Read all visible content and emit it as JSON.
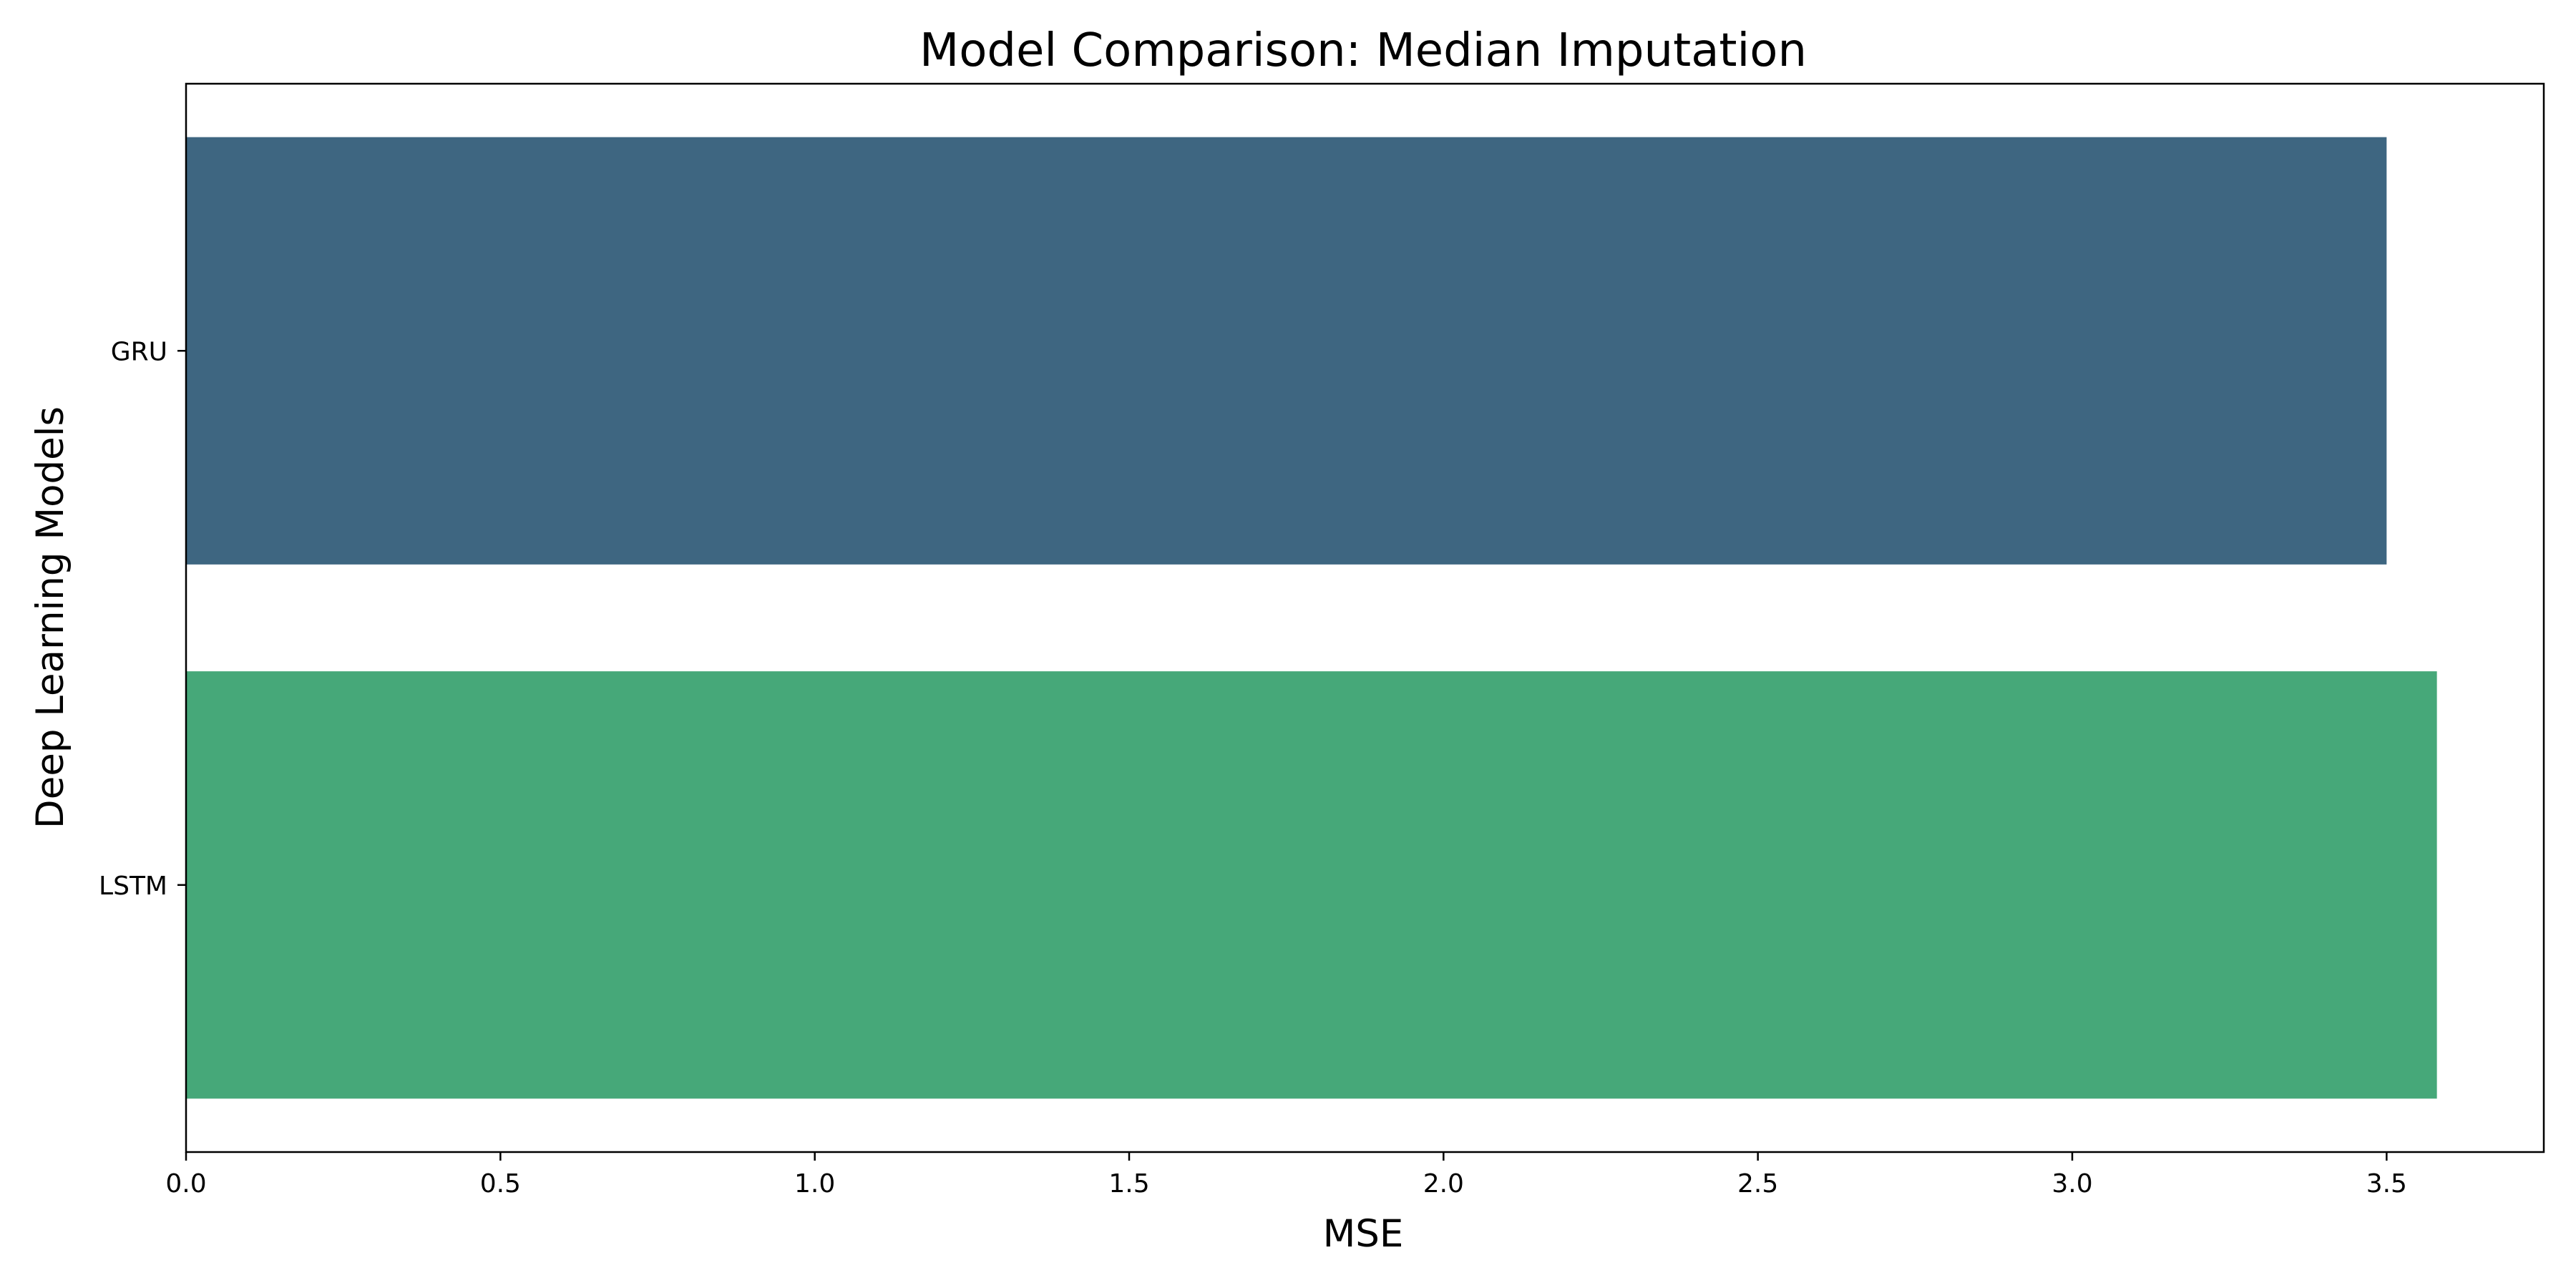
{
  "chart_data": {
    "type": "bar",
    "orientation": "horizontal",
    "title": "Model Comparison: Median Imputation",
    "xlabel": "MSE",
    "ylabel": "Deep Learning Models",
    "categories": [
      "GRU",
      "LSTM"
    ],
    "values": [
      3.5,
      3.58
    ],
    "colors": [
      "#3e6681",
      "#46a879"
    ],
    "xlim": [
      0,
      3.75
    ],
    "xticks": [
      0.0,
      0.5,
      1.0,
      1.5,
      2.0,
      2.5,
      3.0,
      3.5
    ],
    "xtick_labels": [
      "0.0",
      "0.5",
      "1.0",
      "1.5",
      "2.0",
      "2.5",
      "3.0",
      "3.5"
    ],
    "grid": false,
    "legend": false
  }
}
